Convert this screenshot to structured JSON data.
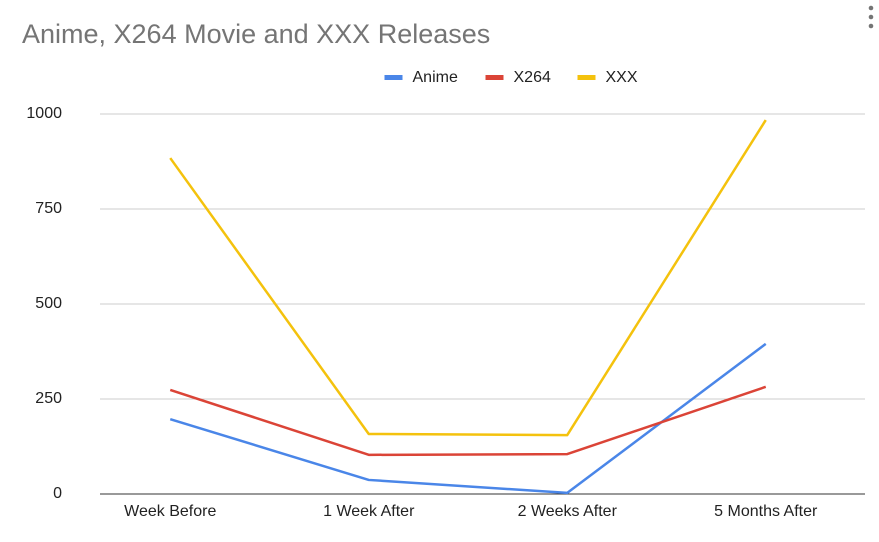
{
  "chart_data": {
    "type": "line",
    "title": "Anime, X264 Movie and XXX Releases",
    "categories": [
      "Week Before",
      "1 Week After",
      "2 Weeks After",
      "5 Months After"
    ],
    "series": [
      {
        "name": "Anime",
        "color": "#4a86e8",
        "values": [
          197,
          37,
          3,
          395
        ]
      },
      {
        "name": "X264",
        "color": "#db4437",
        "values": [
          274,
          103,
          105,
          282
        ]
      },
      {
        "name": "XXX",
        "color": "#f4c20d",
        "values": [
          884,
          158,
          155,
          984
        ]
      }
    ],
    "ylim": [
      0,
      1000
    ],
    "yticks": [
      0,
      250,
      500,
      750,
      1000
    ],
    "grid": true,
    "legend": "top"
  }
}
